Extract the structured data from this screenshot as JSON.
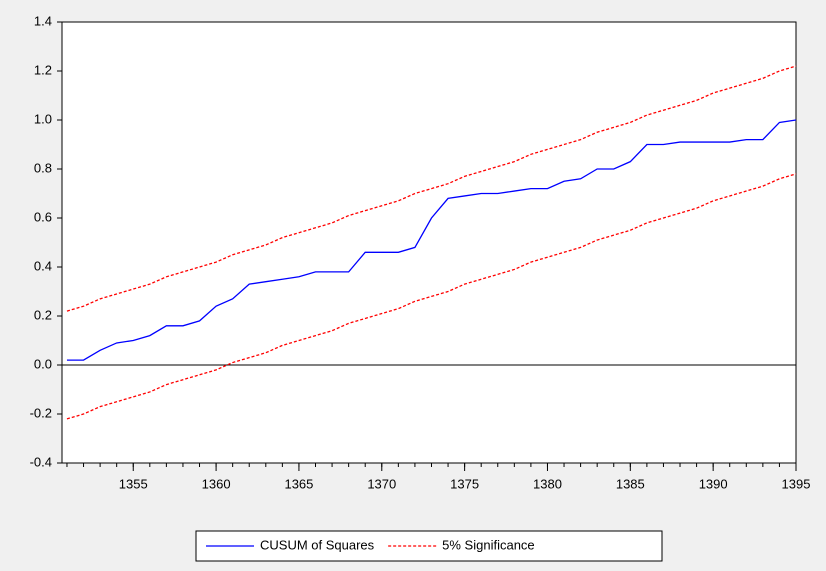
{
  "chart_data": {
    "type": "line",
    "x": [
      1351,
      1352,
      1353,
      1354,
      1355,
      1356,
      1357,
      1358,
      1359,
      1360,
      1361,
      1362,
      1363,
      1364,
      1365,
      1366,
      1367,
      1368,
      1369,
      1370,
      1371,
      1372,
      1373,
      1374,
      1375,
      1376,
      1377,
      1378,
      1379,
      1380,
      1381,
      1382,
      1383,
      1384,
      1385,
      1386,
      1387,
      1388,
      1389,
      1390,
      1391,
      1392,
      1393,
      1394,
      1395
    ],
    "series": [
      {
        "name": "CUSUM of Squares",
        "color": "#0000ff",
        "style": "solid",
        "values": [
          0.02,
          0.02,
          0.06,
          0.09,
          0.1,
          0.12,
          0.16,
          0.16,
          0.18,
          0.24,
          0.27,
          0.33,
          0.34,
          0.35,
          0.36,
          0.38,
          0.38,
          0.38,
          0.46,
          0.46,
          0.46,
          0.48,
          0.6,
          0.68,
          0.69,
          0.7,
          0.7,
          0.71,
          0.72,
          0.72,
          0.75,
          0.76,
          0.8,
          0.8,
          0.83,
          0.9,
          0.9,
          0.91,
          0.91,
          0.91,
          0.91,
          0.92,
          0.92,
          0.99,
          1.0
        ]
      },
      {
        "name": "5% Significance",
        "color": "#ff0000",
        "style": "dashed",
        "upper": [
          0.22,
          0.24,
          0.27,
          0.29,
          0.31,
          0.33,
          0.36,
          0.38,
          0.4,
          0.42,
          0.45,
          0.47,
          0.49,
          0.52,
          0.54,
          0.56,
          0.58,
          0.61,
          0.63,
          0.65,
          0.67,
          0.7,
          0.72,
          0.74,
          0.77,
          0.79,
          0.81,
          0.83,
          0.86,
          0.88,
          0.9,
          0.92,
          0.95,
          0.97,
          0.99,
          1.02,
          1.04,
          1.06,
          1.08,
          1.11,
          1.13,
          1.15,
          1.17,
          1.2,
          1.22
        ],
        "lower": [
          -0.22,
          -0.2,
          -0.17,
          -0.15,
          -0.13,
          -0.11,
          -0.08,
          -0.06,
          -0.04,
          -0.02,
          0.01,
          0.03,
          0.05,
          0.08,
          0.1,
          0.12,
          0.14,
          0.17,
          0.19,
          0.21,
          0.23,
          0.26,
          0.28,
          0.3,
          0.33,
          0.35,
          0.37,
          0.39,
          0.42,
          0.44,
          0.46,
          0.48,
          0.51,
          0.53,
          0.55,
          0.58,
          0.6,
          0.62,
          0.64,
          0.67,
          0.69,
          0.71,
          0.73,
          0.76,
          0.78
        ]
      }
    ],
    "xlim": [
      1350.7,
      1395
    ],
    "xticks": [
      1355,
      1360,
      1365,
      1370,
      1375,
      1380,
      1385,
      1390,
      1395
    ],
    "ylim": [
      -0.4,
      1.4
    ],
    "yticks": [
      -0.4,
      -0.2,
      {
        "value": 0,
        "label": "0.0"
      },
      0.2,
      0.4,
      0.6,
      0.8,
      {
        "value": 1,
        "label": "1.0"
      },
      1.2,
      1.4
    ],
    "zero_line": true,
    "legend": "bottom"
  }
}
